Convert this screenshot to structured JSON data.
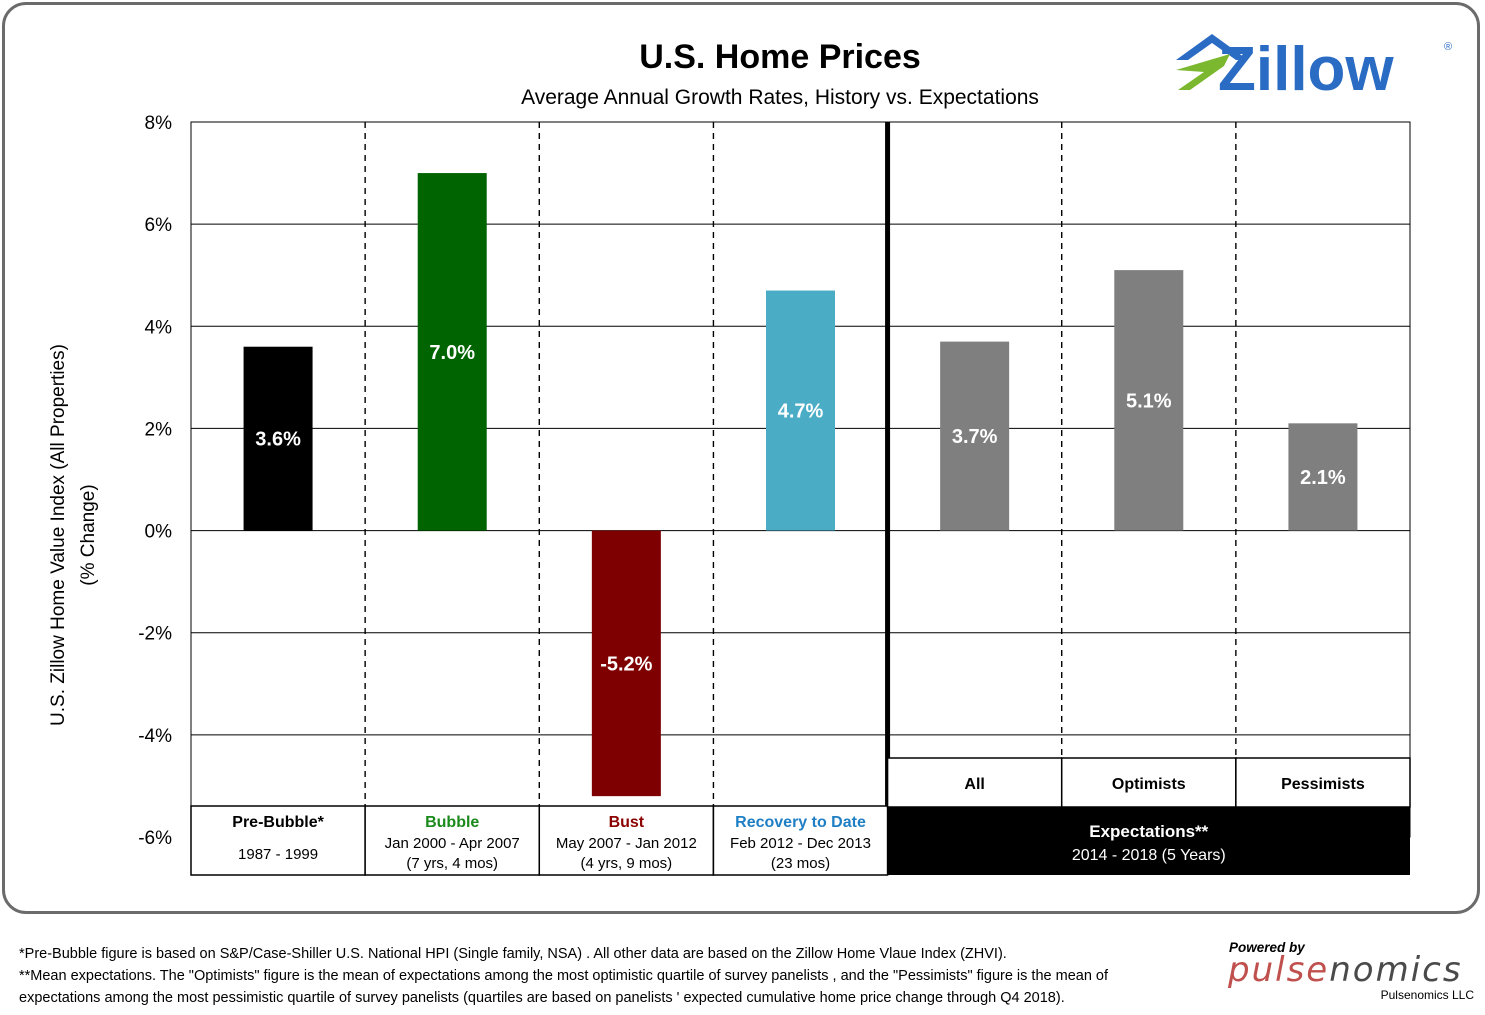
{
  "colors": {
    "pre_bubble": "#000000",
    "bubble": "#006400",
    "bust": "#7f0000",
    "recovery": "#4bacc6",
    "expectations": "#7f7f7f",
    "bubble_label": "#1a8a1a",
    "bust_label": "#8b0000",
    "recovery_label": "#1f7fc4",
    "zillow_blue": "#2a6cc4",
    "zillow_green": "#7cb82f",
    "pulse_red": "#c0504d"
  },
  "chart_data": {
    "type": "bar",
    "title": "U.S. Home Prices",
    "subtitle": "Average Annual Growth Rates, History vs. Expectations",
    "ylabel_line1": "U.S. Zillow Home Value  Index (All Properties)",
    "ylabel_line2": "(% Change)",
    "ylim": [
      -6,
      8
    ],
    "yticks": [
      8,
      6,
      4,
      2,
      0,
      -2,
      -4,
      -6
    ],
    "ytick_labels": [
      "8%",
      "6%",
      "4%",
      "2%",
      "0%",
      "-2%",
      "-4%",
      "-6%"
    ],
    "grid": true,
    "categories": [
      "Pre-Bubble*",
      "Bubble",
      "Bust",
      "Recovery to Date",
      "All",
      "Optimists",
      "Pessimists"
    ],
    "values": [
      3.6,
      7.0,
      -5.2,
      4.7,
      3.7,
      5.1,
      2.1
    ],
    "value_labels": [
      "3.6%",
      "7.0%",
      "-5.2%",
      "4.7%",
      "3.7%",
      "5.1%",
      "2.1%"
    ],
    "bar_colors": [
      "#000000",
      "#006400",
      "#7f0000",
      "#4bacc6",
      "#7f7f7f",
      "#7f7f7f",
      "#7f7f7f"
    ],
    "history_boxes": [
      {
        "title": "Pre-Bubble*",
        "line1": "1987 - 1999",
        "line2": "",
        "title_color": "#000000"
      },
      {
        "title": "Bubble",
        "line1": "Jan 2000 - Apr 2007",
        "line2": "(7 yrs, 4 mos)",
        "title_color": "#1a8a1a"
      },
      {
        "title": "Bust",
        "line1": "May 2007 -  Jan 2012",
        "line2": "(4 yrs, 9 mos)",
        "title_color": "#8b0000"
      },
      {
        "title": "Recovery to Date",
        "line1": "Feb 2012 - Dec 2013",
        "line2": "(23 mos)",
        "title_color": "#1f7fc4"
      }
    ],
    "expectation_boxes": [
      "All",
      "Optimists",
      "Pessimists"
    ],
    "expectations_label": "Expectations**",
    "expectations_range": "2014 - 2018  (5 Years)"
  },
  "logo": {
    "brand": "Zillow",
    "registered": "®"
  },
  "footnotes": {
    "line1": "*Pre-Bubble figure is based on S&P/Case-Shiller U.S. National HPI (Single family, NSA) . All other data are based on the Zillow Home Vlaue Index (ZHVI).",
    "line2": "**Mean expectations. The \"Optimists\" figure is the mean of expectations  among the most optimistic quartile of survey panelists , and the \"Pessimists\" figure is the mean of",
    "line3": "expectations  among the most pessimistic quartile of survey panelists (quartiles  are based on panelists ' expected cumulative  home price change through Q4 2018)."
  },
  "powered": {
    "label": "Powered by",
    "brand_part1": "pulse",
    "brand_part2": "nomics",
    "company": "Pulsenomics LLC"
  }
}
